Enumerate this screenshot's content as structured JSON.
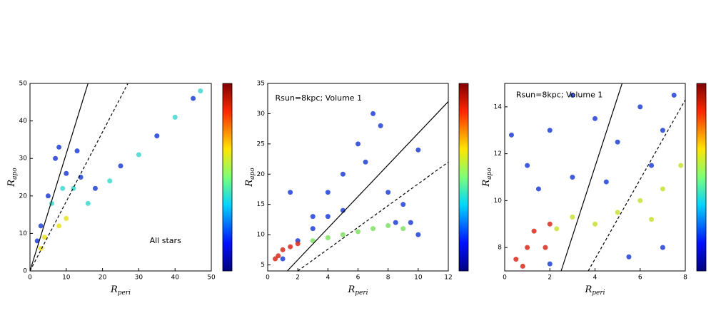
{
  "chart_data": [
    {
      "type": "scatter",
      "annotation": "All stars",
      "annotation_at": [
        33,
        8
      ],
      "x_label": "R",
      "x_label_sub": "peri",
      "y_label": "R",
      "y_label_sub": "apo",
      "xlim": [
        0,
        50
      ],
      "ylim": [
        0,
        50
      ],
      "xticks": [
        0,
        10,
        20,
        30,
        40,
        50
      ],
      "yticks": [
        0,
        10,
        20,
        30,
        40,
        50
      ],
      "lines": [
        {
          "style": "solid",
          "x": [
            0,
            16
          ],
          "y": [
            0,
            50
          ]
        },
        {
          "style": "dashed",
          "x": [
            0,
            27
          ],
          "y": [
            0,
            50
          ]
        }
      ],
      "series": [
        {
          "color": "#1f3fd6",
          "x": [
            3,
            5,
            7,
            8,
            10,
            13,
            14,
            18,
            25,
            35,
            45,
            2
          ],
          "y": [
            12,
            20,
            30,
            33,
            26,
            32,
            25,
            22,
            28,
            36,
            46,
            8
          ]
        },
        {
          "color": "#3fd8d0",
          "x": [
            6,
            9,
            12,
            16,
            22,
            30,
            40,
            47
          ],
          "y": [
            18,
            22,
            22,
            18,
            24,
            31,
            41,
            48
          ]
        },
        {
          "color": "#e8e020",
          "x": [
            4,
            8,
            10,
            3
          ],
          "y": [
            9,
            12,
            14,
            6
          ]
        }
      ]
    },
    {
      "type": "scatter",
      "annotation": "Rsun=8kpc; Volume 1",
      "annotation_at": [
        0.5,
        32.5
      ],
      "x_label": "R",
      "x_label_sub": "peri",
      "y_label": "R",
      "y_label_sub": "apo",
      "xlim": [
        0,
        12
      ],
      "ylim": [
        4,
        35
      ],
      "xticks": [
        0,
        2,
        4,
        6,
        8,
        10,
        12
      ],
      "yticks": [
        5,
        10,
        15,
        20,
        25,
        30,
        35
      ],
      "lines": [
        {
          "style": "solid",
          "x": [
            1.3,
            12
          ],
          "y": [
            4,
            32
          ]
        },
        {
          "style": "dashed",
          "x": [
            2,
            12
          ],
          "y": [
            4,
            22
          ]
        }
      ],
      "series": [
        {
          "color": "#1f3fd6",
          "x": [
            1,
            2,
            3,
            4,
            5,
            6,
            7,
            7.5,
            6.5,
            8,
            9,
            10,
            5,
            4,
            8.5,
            9.5,
            10,
            3,
            1.5
          ],
          "y": [
            6,
            9,
            11,
            13,
            20,
            25,
            30,
            28,
            22,
            17,
            15,
            24,
            14,
            17,
            12,
            12,
            10,
            13,
            17
          ]
        },
        {
          "color": "#7fe060",
          "x": [
            3,
            4,
            5,
            6,
            7,
            8,
            9
          ],
          "y": [
            9,
            9.5,
            10,
            10.5,
            11,
            11.5,
            11
          ]
        },
        {
          "color": "#d92a1c",
          "x": [
            0.5,
            1,
            1.5,
            2,
            0.7
          ],
          "y": [
            6,
            7.5,
            8,
            8.5,
            6.5
          ]
        }
      ]
    },
    {
      "type": "scatter",
      "annotation": "Rsun=8kpc; Volume 1",
      "annotation_at": [
        0.5,
        14.5
      ],
      "x_label": "R",
      "x_label_sub": "peri",
      "y_label": "R",
      "y_label_sub": "apo",
      "xlim": [
        0,
        8
      ],
      "ylim": [
        7,
        15
      ],
      "xticks": [
        0,
        2,
        4,
        6,
        8
      ],
      "yticks": [
        8,
        10,
        12,
        14
      ],
      "lines": [
        {
          "style": "solid",
          "x": [
            2.5,
            5.2
          ],
          "y": [
            7,
            15
          ]
        },
        {
          "style": "dashed",
          "x": [
            3.7,
            8
          ],
          "y": [
            7,
            14.3
          ]
        }
      ],
      "series": [
        {
          "color": "#1f3fd6",
          "x": [
            0.3,
            1,
            2,
            3,
            4,
            5,
            6,
            7,
            7.5,
            3,
            1.5,
            6.5,
            4.5,
            2,
            5.5,
            7
          ],
          "y": [
            12.8,
            11.5,
            13,
            14.5,
            13.5,
            12.5,
            14,
            13,
            14.5,
            11,
            10.5,
            11.5,
            10.8,
            7.3,
            7.6,
            8
          ]
        },
        {
          "color": "#c8e030",
          "x": [
            3,
            4,
            5,
            6,
            7,
            7.8,
            6.5,
            2.3
          ],
          "y": [
            9.3,
            9,
            9.5,
            10,
            10.5,
            11.5,
            9.2,
            8.8
          ]
        },
        {
          "color": "#d92a1c",
          "x": [
            0.5,
            1,
            1.3,
            2,
            1.8,
            0.8
          ],
          "y": [
            7.5,
            8,
            8.7,
            9,
            8,
            7.2
          ]
        }
      ]
    }
  ]
}
